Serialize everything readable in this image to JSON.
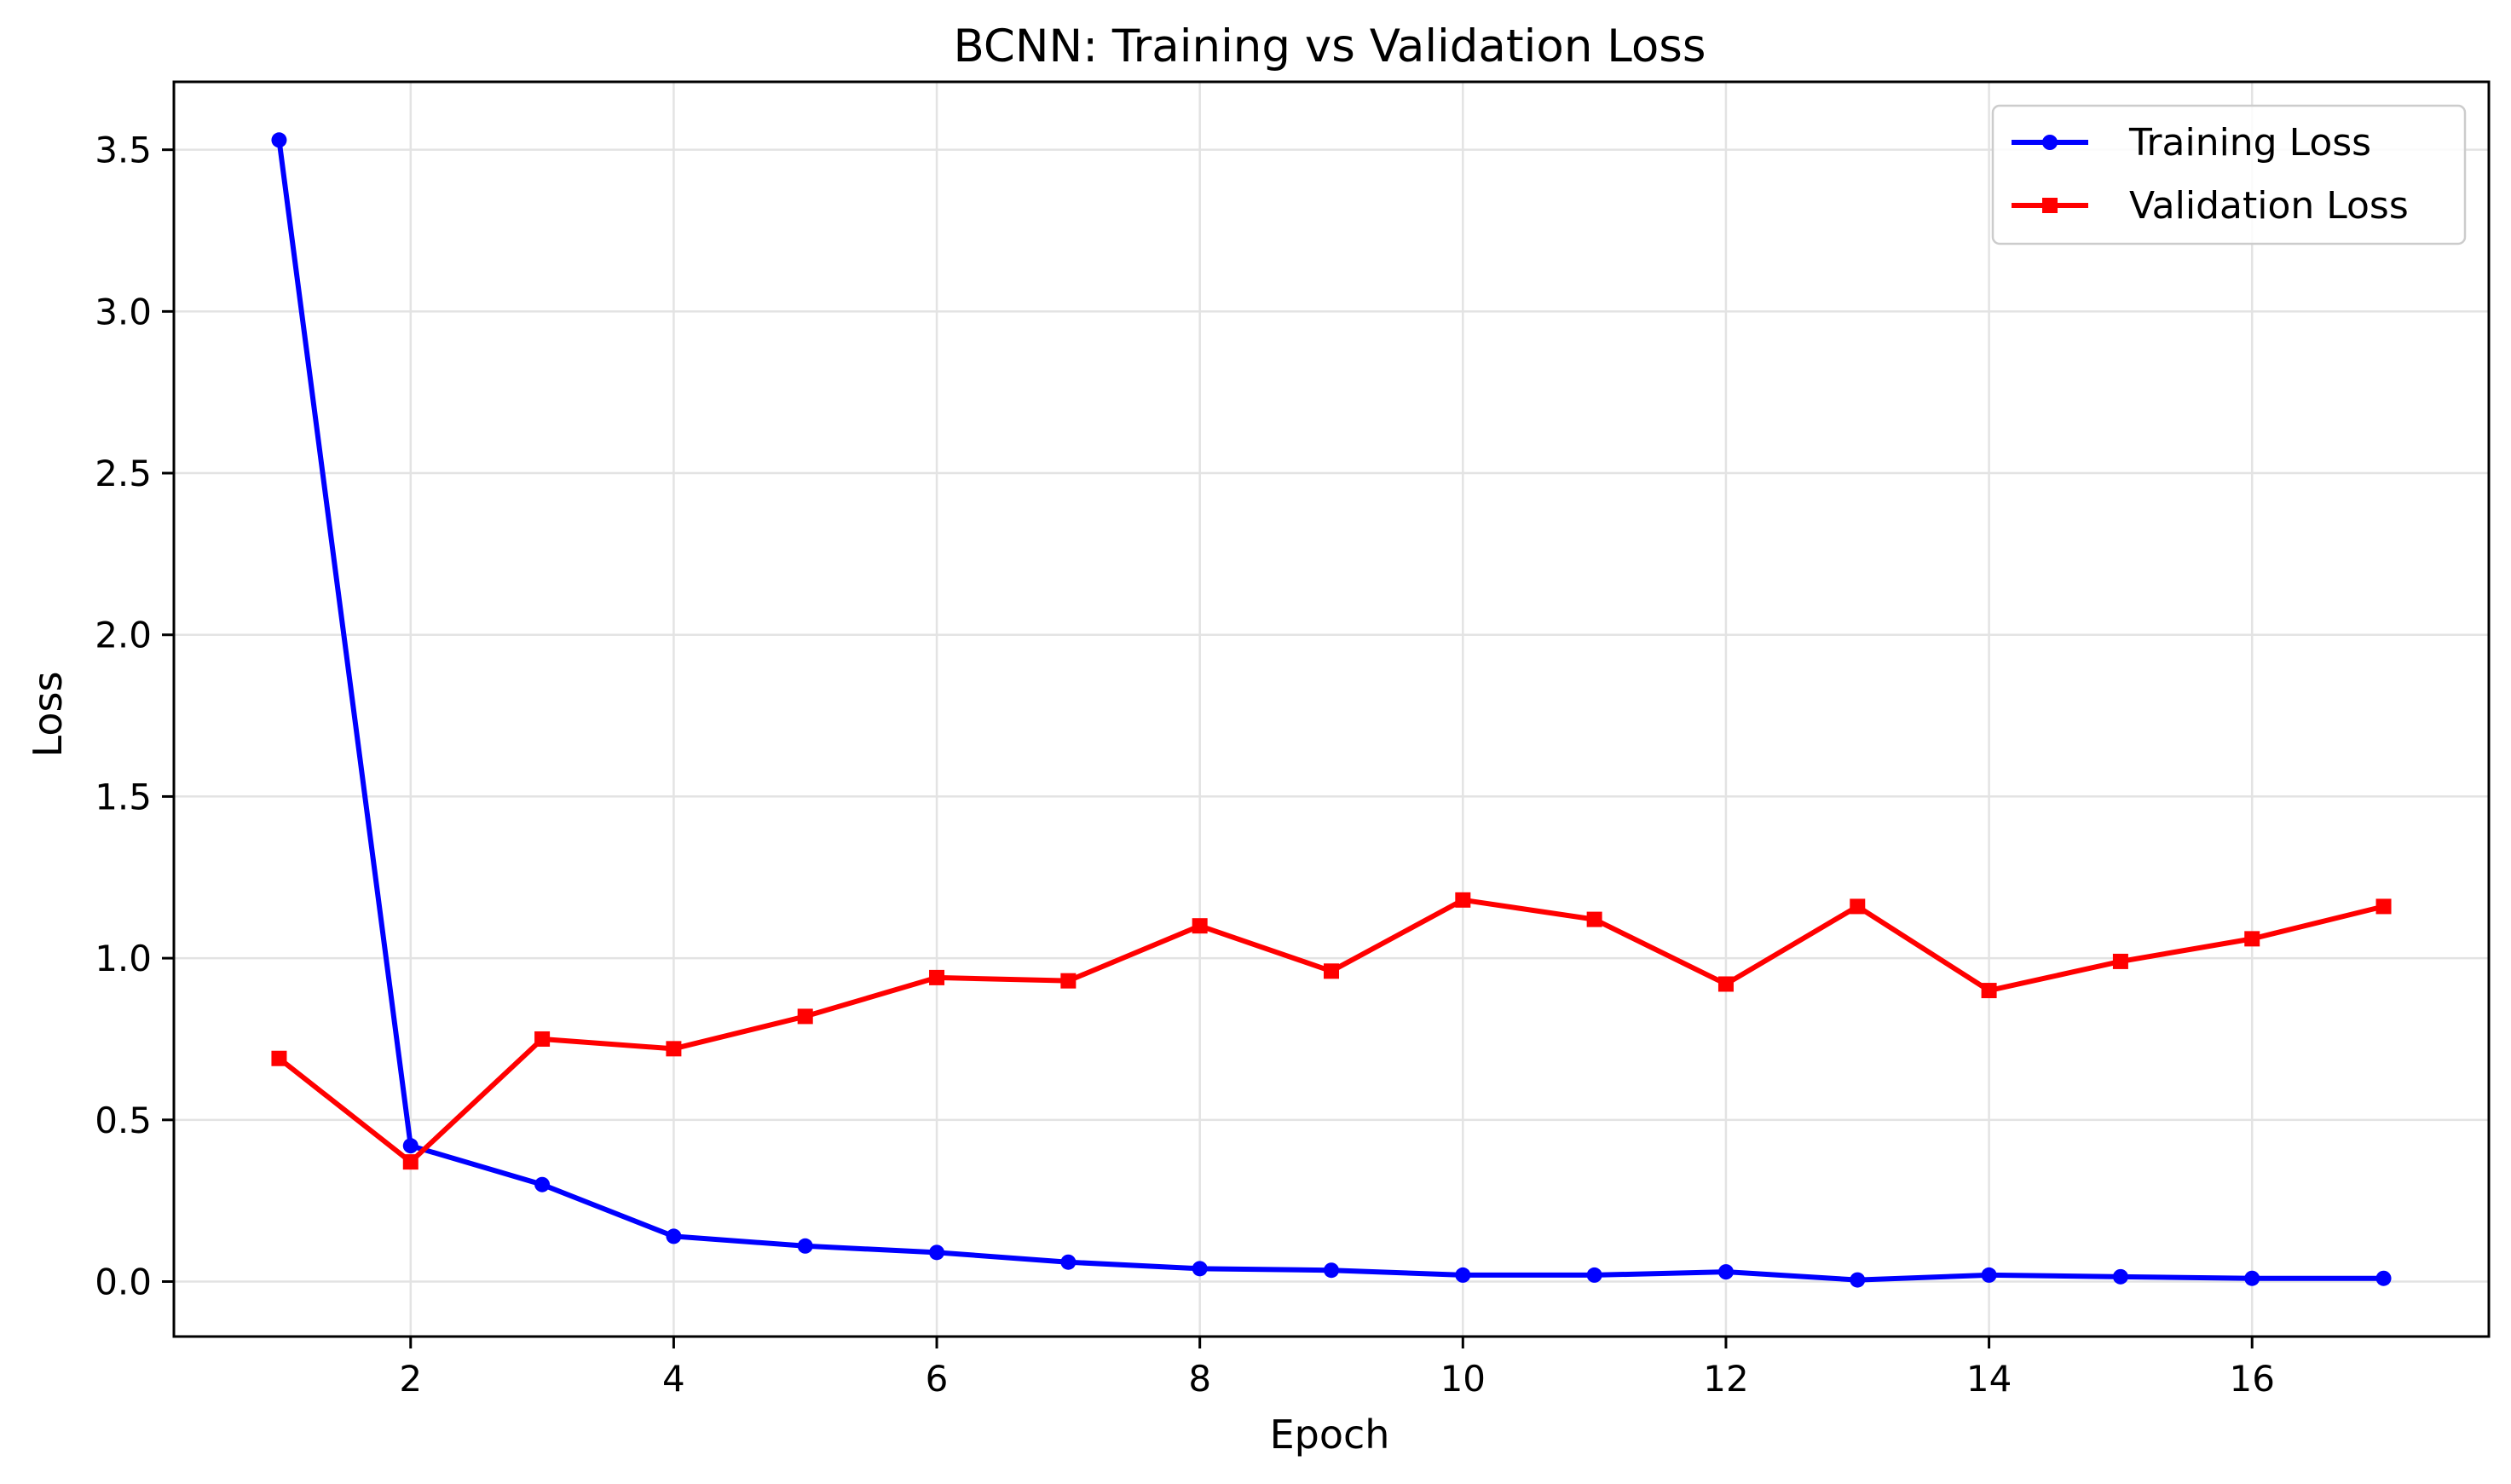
{
  "chart_data": {
    "type": "line",
    "title": "BCNN: Training vs Validation Loss",
    "xlabel": "Epoch",
    "ylabel": "Loss",
    "xlim": [
      0.2,
      17.8
    ],
    "ylim": [
      -0.17,
      3.71
    ],
    "xticks": [
      2,
      4,
      6,
      8,
      10,
      12,
      14,
      16
    ],
    "yticks": [
      0.0,
      0.5,
      1.0,
      1.5,
      2.0,
      2.5,
      3.0,
      3.5
    ],
    "ytick_labels": [
      "0.0",
      "0.5",
      "1.0",
      "1.5",
      "2.0",
      "2.5",
      "3.0",
      "3.5"
    ],
    "grid": true,
    "legend_position": "top-right",
    "x": [
      1,
      2,
      3,
      4,
      5,
      6,
      7,
      8,
      9,
      10,
      11,
      12,
      13,
      14,
      15,
      16,
      17
    ],
    "series": [
      {
        "name": "Training Loss",
        "color": "#0000ff",
        "marker": "circle",
        "values": [
          3.53,
          0.42,
          0.3,
          0.14,
          0.11,
          0.09,
          0.06,
          0.04,
          0.035,
          0.02,
          0.02,
          0.03,
          0.005,
          0.02,
          0.015,
          0.01,
          0.01
        ]
      },
      {
        "name": "Validation Loss",
        "color": "#ff0000",
        "marker": "square",
        "values": [
          0.69,
          0.37,
          0.75,
          0.72,
          0.82,
          0.94,
          0.93,
          1.1,
          0.96,
          1.18,
          1.12,
          0.92,
          1.16,
          0.9,
          0.99,
          1.06,
          1.16
        ]
      }
    ]
  }
}
